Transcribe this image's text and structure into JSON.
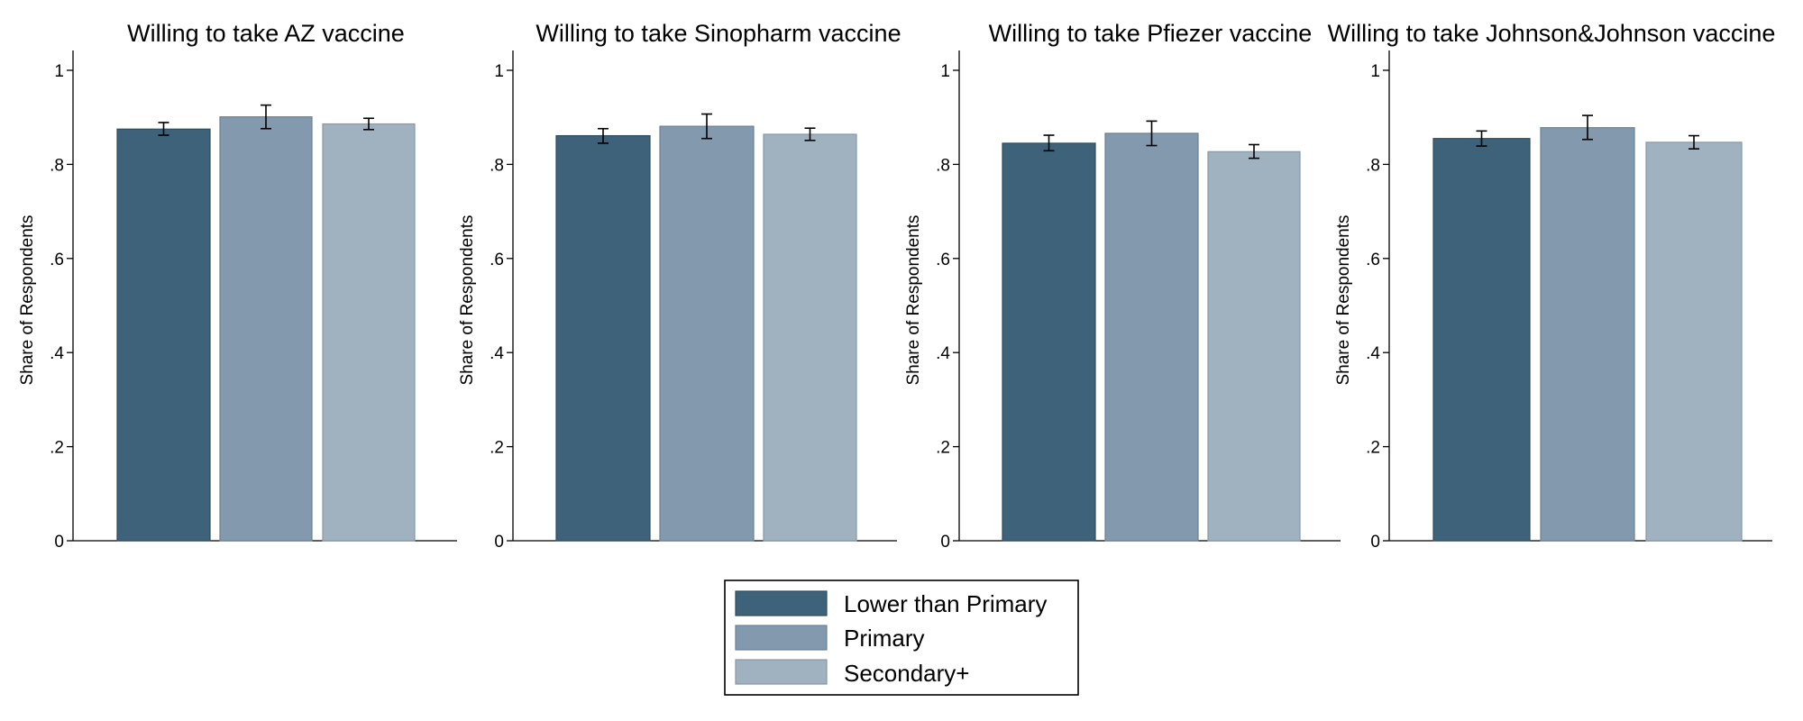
{
  "chart_data": [
    {
      "type": "bar",
      "title": "Willing to take AZ vaccine",
      "ylabel": "Share of Respondents",
      "xlabel": "",
      "ylim": [
        0,
        1.04
      ],
      "yticks": [
        0,
        0.2,
        0.4,
        0.6,
        0.8,
        1
      ],
      "ytick_labels": [
        "0",
        ".2",
        ".4",
        ".6",
        ".8",
        "1"
      ],
      "series": [
        {
          "name": "Lower than Primary",
          "value": 0.875,
          "ci": [
            0.862,
            0.889
          ]
        },
        {
          "name": "Primary",
          "value": 0.901,
          "ci": [
            0.876,
            0.926
          ]
        },
        {
          "name": "Secondary+",
          "value": 0.886,
          "ci": [
            0.874,
            0.898
          ]
        }
      ]
    },
    {
      "type": "bar",
      "title": "Willing to take Sinopharm vaccine",
      "ylabel": "Share of Respondents",
      "xlabel": "",
      "ylim": [
        0,
        1.04
      ],
      "yticks": [
        0,
        0.2,
        0.4,
        0.6,
        0.8,
        1
      ],
      "ytick_labels": [
        "0",
        ".2",
        ".4",
        ".6",
        ".8",
        "1"
      ],
      "series": [
        {
          "name": "Lower than Primary",
          "value": 0.861,
          "ci": [
            0.845,
            0.876
          ]
        },
        {
          "name": "Primary",
          "value": 0.881,
          "ci": [
            0.855,
            0.907
          ]
        },
        {
          "name": "Secondary+",
          "value": 0.864,
          "ci": [
            0.851,
            0.877
          ]
        }
      ]
    },
    {
      "type": "bar",
      "title": "Willing to take Pfiezer vaccine",
      "ylabel": "Share of Respondents",
      "xlabel": "",
      "ylim": [
        0,
        1.04
      ],
      "yticks": [
        0,
        0.2,
        0.4,
        0.6,
        0.8,
        1
      ],
      "ytick_labels": [
        "0",
        ".2",
        ".4",
        ".6",
        ".8",
        "1"
      ],
      "series": [
        {
          "name": "Lower than Primary",
          "value": 0.845,
          "ci": [
            0.829,
            0.862
          ]
        },
        {
          "name": "Primary",
          "value": 0.866,
          "ci": [
            0.84,
            0.892
          ]
        },
        {
          "name": "Secondary+",
          "value": 0.827,
          "ci": [
            0.813,
            0.842
          ]
        }
      ]
    },
    {
      "type": "bar",
      "title": "Willing to take Johnson&Johnson vaccine",
      "ylabel": "Share of Respondents",
      "xlabel": "",
      "ylim": [
        0,
        1.04
      ],
      "yticks": [
        0,
        0.2,
        0.4,
        0.6,
        0.8,
        1
      ],
      "ytick_labels": [
        "0",
        ".2",
        ".4",
        ".6",
        ".8",
        "1"
      ],
      "series": [
        {
          "name": "Lower than Primary",
          "value": 0.855,
          "ci": [
            0.839,
            0.871
          ]
        },
        {
          "name": "Primary",
          "value": 0.878,
          "ci": [
            0.853,
            0.904
          ]
        },
        {
          "name": "Secondary+",
          "value": 0.847,
          "ci": [
            0.833,
            0.861
          ]
        }
      ]
    }
  ],
  "legend": {
    "placement": "bottom-center",
    "items": [
      {
        "label": "Lower than Primary",
        "color": "#3e627a"
      },
      {
        "label": "Primary",
        "color": "#8399ae"
      },
      {
        "label": "Secondary+",
        "color": "#a0b1bf"
      }
    ]
  },
  "style": {
    "bar_colors": [
      "#3e627a",
      "#8399ae",
      "#a0b1bf"
    ],
    "bar_edge_colors": [
      "#2f4c60",
      "#6a8196",
      "#8699a8"
    ],
    "grid": false
  }
}
